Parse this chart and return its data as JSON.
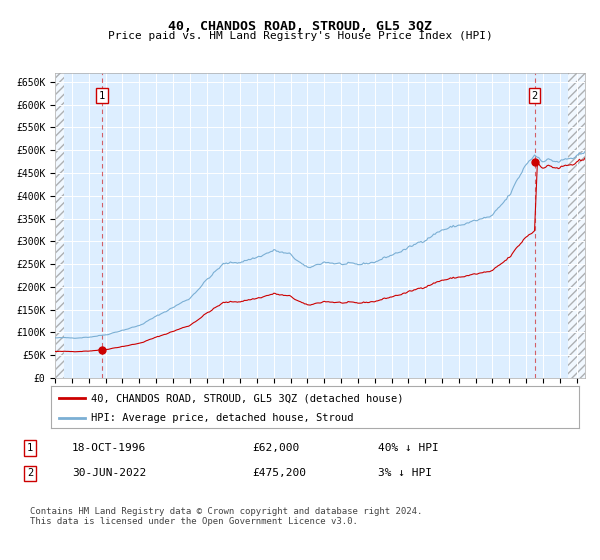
{
  "title": "40, CHANDOS ROAD, STROUD, GL5 3QZ",
  "subtitle": "Price paid vs. HM Land Registry's House Price Index (HPI)",
  "ylim": [
    0,
    670000
  ],
  "yticks": [
    0,
    50000,
    100000,
    150000,
    200000,
    250000,
    300000,
    350000,
    400000,
    450000,
    500000,
    550000,
    600000,
    650000
  ],
  "ytick_labels": [
    "£0",
    "£50K",
    "£100K",
    "£150K",
    "£200K",
    "£250K",
    "£300K",
    "£350K",
    "£400K",
    "£450K",
    "£500K",
    "£550K",
    "£600K",
    "£650K"
  ],
  "hpi_color": "#7bafd4",
  "price_color": "#cc0000",
  "bg_color": "#ddeeff",
  "grid_color": "#ffffff",
  "legend_label_price": "40, CHANDOS ROAD, STROUD, GL5 3QZ (detached house)",
  "legend_label_hpi": "HPI: Average price, detached house, Stroud",
  "sale1_date": 1996.79,
  "sale1_price": 62000,
  "sale2_date": 2022.5,
  "sale2_price": 475200,
  "hpi_start_year": 1994.0,
  "hpi_step": 0.08333,
  "xlim_left": 1994.0,
  "xlim_right": 2025.5,
  "xtick_start": 1994,
  "xtick_end": 2025,
  "footer": "Contains HM Land Registry data © Crown copyright and database right 2024.\nThis data is licensed under the Open Government Licence v3.0."
}
